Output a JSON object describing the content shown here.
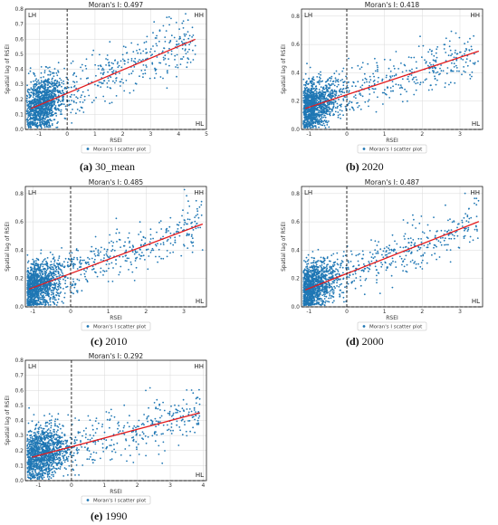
{
  "colors": {
    "points": "#1f77b4",
    "fit_line": "#e41a1c",
    "grid": "#d9d9d9",
    "axes": "#000000"
  },
  "legend_label": "Moran's I scatter plot",
  "quadrant_labels": {
    "lh": "LH",
    "hh": "HH",
    "hl": "HL"
  },
  "panels": [
    {
      "key": "a",
      "caption_letter": "(a)",
      "caption_text": "30_mean",
      "title": "Moran's I: 0.497",
      "xlabel": "RSEI",
      "ylabel": "Spatial lag of RSEI",
      "xlim": [
        -1.5,
        5
      ],
      "ylim": [
        0,
        0.8
      ],
      "xticks": [
        -1,
        0,
        1,
        2,
        3,
        4,
        5
      ],
      "yticks": [
        0.0,
        0.1,
        0.2,
        0.3,
        0.4,
        0.5,
        0.6,
        0.7,
        0.8
      ],
      "slope": 0.078,
      "intercept": 0.24,
      "fit_range": [
        -1.3,
        4.6
      ],
      "x_max_points": 4.6
    },
    {
      "key": "b",
      "caption_letter": "(b)",
      "caption_text": "2020",
      "title": "Moran's I: 0.418",
      "xlabel": "RSEI",
      "ylabel": "Spatial lag of RSEI",
      "xlim": [
        -1.2,
        3.6
      ],
      "ylim": [
        0,
        0.85
      ],
      "xticks": [
        -1,
        0,
        1,
        2,
        3
      ],
      "yticks": [
        0.0,
        0.2,
        0.4,
        0.6,
        0.8
      ],
      "slope": 0.088,
      "intercept": 0.245,
      "fit_range": [
        -1.1,
        3.5
      ],
      "x_max_points": 3.5
    },
    {
      "key": "c",
      "caption_letter": "(c)",
      "caption_text": "2010",
      "title": "Moran's I: 0.485",
      "xlabel": "RSEI",
      "ylabel": "Spatial lag of RSEI",
      "xlim": [
        -1.2,
        3.6
      ],
      "ylim": [
        0,
        0.85
      ],
      "xticks": [
        -1,
        0,
        1,
        2,
        3
      ],
      "yticks": [
        0.0,
        0.2,
        0.4,
        0.6,
        0.8
      ],
      "slope": 0.1,
      "intercept": 0.235,
      "fit_range": [
        -1.1,
        3.5
      ],
      "x_max_points": 3.5
    },
    {
      "key": "d",
      "caption_letter": "(d)",
      "caption_text": "2000",
      "title": "Moran's I: 0.487",
      "xlabel": "RSEI",
      "ylabel": "Spatial lag of RSEI",
      "xlim": [
        -1.2,
        3.6
      ],
      "ylim": [
        0,
        0.85
      ],
      "xticks": [
        -1,
        0,
        1,
        2,
        3
      ],
      "yticks": [
        0.0,
        0.2,
        0.4,
        0.6,
        0.8
      ],
      "slope": 0.105,
      "intercept": 0.235,
      "fit_range": [
        -1.1,
        3.5
      ],
      "x_max_points": 3.5
    },
    {
      "key": "e",
      "caption_letter": "(e)",
      "caption_text": "1990",
      "title": "Moran's I: 0.292",
      "xlabel": "RSEI",
      "ylabel": "Spatial lag of RSEI",
      "xlim": [
        -1.4,
        4.1
      ],
      "ylim": [
        0,
        0.8
      ],
      "xticks": [
        -1,
        0,
        1,
        2,
        3,
        4
      ],
      "yticks": [
        0.0,
        0.1,
        0.2,
        0.3,
        0.4,
        0.5,
        0.6,
        0.7,
        0.8
      ],
      "slope": 0.058,
      "intercept": 0.225,
      "fit_range": [
        -1.2,
        3.9
      ],
      "x_max_points": 3.9
    }
  ],
  "chart_data": [
    {
      "type": "scatter",
      "title": "Moran's I: 0.497",
      "xlabel": "RSEI",
      "ylabel": "Spatial lag of RSEI",
      "xlim": [
        -1.5,
        5
      ],
      "ylim": [
        0,
        0.8
      ],
      "legend": "Moran's I scatter plot",
      "trend": {
        "slope": 0.078,
        "intercept": 0.24
      },
      "moran_i": 0.497
    },
    {
      "type": "scatter",
      "title": "Moran's I: 0.418",
      "xlabel": "RSEI",
      "ylabel": "Spatial lag of RSEI",
      "xlim": [
        -1.2,
        3.6
      ],
      "ylim": [
        0,
        0.85
      ],
      "legend": "Moran's I scatter plot",
      "trend": {
        "slope": 0.088,
        "intercept": 0.245
      },
      "moran_i": 0.418
    },
    {
      "type": "scatter",
      "title": "Moran's I: 0.485",
      "xlabel": "RSEI",
      "ylabel": "Spatial lag of RSEI",
      "xlim": [
        -1.2,
        3.6
      ],
      "ylim": [
        0,
        0.85
      ],
      "legend": "Moran's I scatter plot",
      "trend": {
        "slope": 0.1,
        "intercept": 0.235
      },
      "moran_i": 0.485
    },
    {
      "type": "scatter",
      "title": "Moran's I: 0.487",
      "xlabel": "RSEI",
      "ylabel": "Spatial lag of RSEI",
      "xlim": [
        -1.2,
        3.6
      ],
      "ylim": [
        0,
        0.85
      ],
      "legend": "Moran's I scatter plot",
      "trend": {
        "slope": 0.105,
        "intercept": 0.235
      },
      "moran_i": 0.487
    },
    {
      "type": "scatter",
      "title": "Moran's I: 0.292",
      "xlabel": "RSEI",
      "ylabel": "Spatial lag of RSEI",
      "xlim": [
        -1.4,
        4.1
      ],
      "ylim": [
        0,
        0.8
      ],
      "legend": "Moran's I scatter plot",
      "trend": {
        "slope": 0.058,
        "intercept": 0.225
      },
      "moran_i": 0.292
    }
  ]
}
